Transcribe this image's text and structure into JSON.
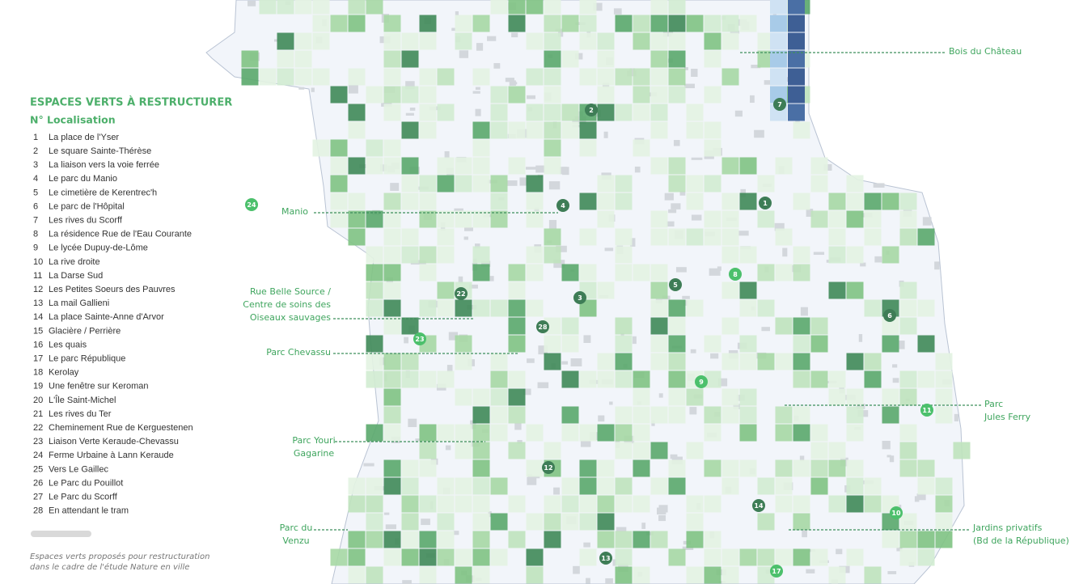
{
  "legend": {
    "title": "ESPACES VERTS À RESTRUCTURER",
    "header_number": "N°",
    "header_location": "Localisation",
    "items": [
      {
        "number": 1,
        "name": "La place de l'Yser"
      },
      {
        "number": 2,
        "name": "Le square Sainte-Thérèse"
      },
      {
        "number": 3,
        "name": "La liaison vers la voie ferrée"
      },
      {
        "number": 4,
        "name": "Le parc du Manio"
      },
      {
        "number": 5,
        "name": "Le cimetière de Kerentrec'h"
      },
      {
        "number": 6,
        "name": "Le parc de l'Hôpital"
      },
      {
        "number": 7,
        "name": "Les rives du Scorff"
      },
      {
        "number": 8,
        "name": "La résidence Rue de l'Eau Courante"
      },
      {
        "number": 9,
        "name": "Le lycée Dupuy-de-Lôme"
      },
      {
        "number": 10,
        "name": "La rive droite"
      },
      {
        "number": 11,
        "name": "La Darse Sud"
      },
      {
        "number": 12,
        "name": "Les Petites Soeurs des Pauvres"
      },
      {
        "number": 13,
        "name": "La mail Gallieni"
      },
      {
        "number": 14,
        "name": "La place Sainte-Anne d'Arvor"
      },
      {
        "number": 15,
        "name": "Glacière / Perrière"
      },
      {
        "number": 16,
        "name": "Les quais"
      },
      {
        "number": 17,
        "name": "Le parc République"
      },
      {
        "number": 18,
        "name": "Kerolay"
      },
      {
        "number": 19,
        "name": "Une fenêtre sur Keroman"
      },
      {
        "number": 20,
        "name": "L'Île Saint-Michel"
      },
      {
        "number": 21,
        "name": "Les rives du Ter"
      },
      {
        "number": 22,
        "name": "Cheminement Rue de Kerguestenen"
      },
      {
        "number": 23,
        "name": "Liaison Verte Keraude-Chevassu"
      },
      {
        "number": 24,
        "name": "Ferme Urbaine à Lann Keraude"
      },
      {
        "number": 25,
        "name": "Vers Le Gaillec"
      },
      {
        "number": 26,
        "name": "Le Parc du Pouillot"
      },
      {
        "number": 27,
        "name": "Le Parc du Scorff"
      },
      {
        "number": 28,
        "name": "En attendant le tram"
      }
    ],
    "note": [
      "Espaces verts proposés pour restructuration",
      "dans le cadre de l'étude Nature en ville"
    ]
  },
  "map": {
    "labels": [
      {
        "lines": [
          "Bois du Château"
        ]
      },
      {
        "lines": [
          "Manio"
        ]
      },
      {
        "lines": [
          "Rue Belle Source /",
          "Centre de soins des",
          "Oiseaux sauvages"
        ]
      },
      {
        "lines": [
          "Parc Chevassu"
        ]
      },
      {
        "lines": [
          "Parc Youri",
          "Gagarine"
        ]
      },
      {
        "lines": [
          "Parc",
          "Jules Ferry"
        ]
      },
      {
        "lines": [
          "Parc du",
          "Venzu"
        ]
      },
      {
        "lines": [
          "Jardins privatifs",
          "(Bd de la République)"
        ]
      }
    ],
    "markers": [
      2,
      7,
      1,
      4,
      24,
      8,
      5,
      22,
      3,
      6,
      28,
      23,
      9,
      11,
      12,
      14,
      10,
      13,
      17
    ]
  }
}
